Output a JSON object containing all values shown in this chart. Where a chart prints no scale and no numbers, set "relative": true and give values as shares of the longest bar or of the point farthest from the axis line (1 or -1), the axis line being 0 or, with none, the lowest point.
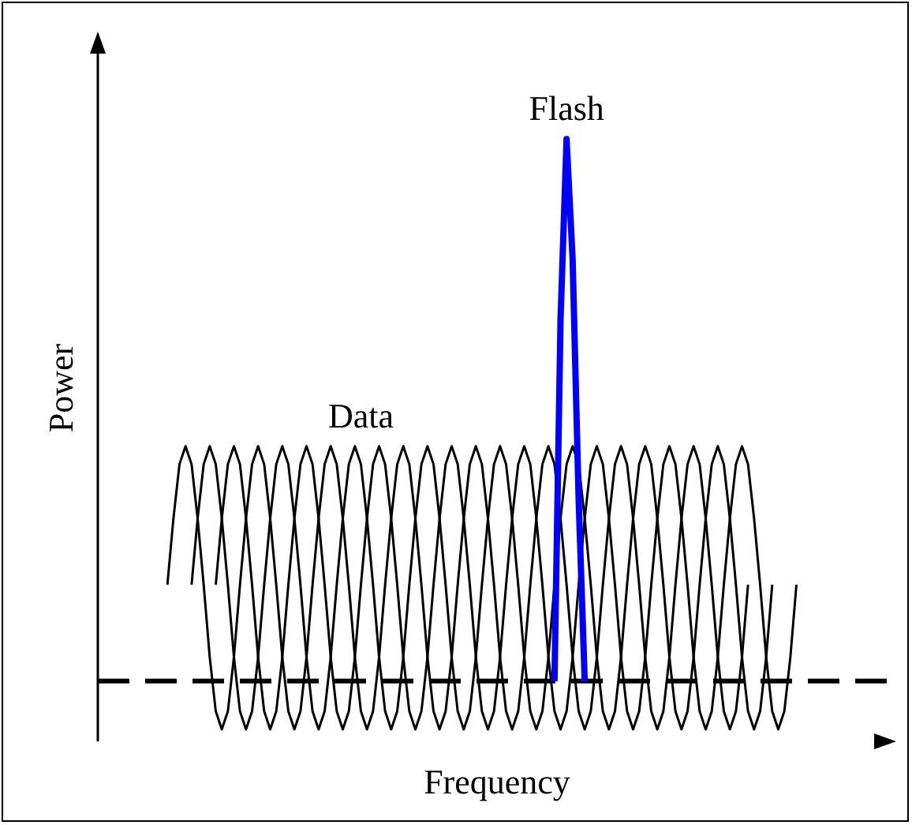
{
  "chart_data": {
    "type": "line",
    "relative": true,
    "xlabel": "Frequency",
    "ylabel": "Power",
    "grid": false,
    "legend": false,
    "marker": "none",
    "line_style": "solid",
    "categories": [
      null,
      null,
      null,
      null,
      null,
      null,
      null,
      null,
      null,
      null,
      null,
      null,
      null,
      null,
      null,
      null,
      null,
      null,
      null,
      null,
      null,
      null,
      null,
      null,
      null,
      null,
      null,
      null,
      null,
      null,
      null,
      null,
      null,
      null,
      null,
      null,
      null,
      null,
      null,
      null,
      null,
      null,
      null,
      null,
      null,
      null,
      null,
      null,
      null,
      null,
      null,
      null,
      null,
      null,
      null,
      null,
      null,
      null,
      null,
      null,
      null,
      null,
      null,
      null,
      null,
      null,
      null,
      null,
      null,
      null,
      null,
      null,
      null,
      null,
      null,
      null,
      null,
      null,
      null,
      null,
      null,
      null,
      null,
      null,
      null,
      null,
      null,
      null,
      null,
      null,
      null,
      null,
      null,
      null,
      null,
      null,
      null,
      null,
      null,
      null,
      null,
      null,
      null,
      null,
      null,
      null,
      null,
      null,
      null,
      null,
      null,
      null,
      null,
      null,
      null,
      null,
      null,
      null,
      null,
      null,
      null,
      null,
      null,
      null,
      null,
      null,
      null,
      null,
      null,
      null,
      null,
      null
    ],
    "ref_lines": [
      {
        "axis": "y",
        "value": 0.1,
        "line_style": "dashed",
        "color": "#000000"
      }
    ],
    "series": [
      {
        "name": "Data",
        "color": "#000000",
        "values": [
          null,
          null,
          null,
          null,
          null,
          null,
          null,
          null,
          null,
          null,
          null,
          0.26,
          0.37,
          0.46,
          0.49,
          0.46,
          0.37,
          0.26,
          0.14,
          0.05,
          0.02,
          0.05,
          0.14,
          0.26,
          0.37,
          0.46,
          0.49,
          0.46,
          0.37,
          0.26,
          0.14,
          0.05,
          0.02,
          0.05,
          0.14,
          0.26,
          0.37,
          0.46,
          0.49,
          0.46,
          0.37,
          0.26,
          0.14,
          0.05,
          0.02,
          0.05,
          0.14,
          0.26,
          0.37,
          0.46,
          0.49,
          0.46,
          0.37,
          0.26,
          0.14,
          0.05,
          0.02,
          0.05,
          0.14,
          0.26,
          0.37,
          0.46,
          0.49,
          0.46,
          0.37,
          0.26,
          0.14,
          0.05,
          0.02,
          0.05,
          0.14,
          0.26,
          0.37,
          0.46,
          0.49,
          0.46,
          0.37,
          0.26,
          0.14,
          0.05,
          0.02,
          0.05,
          0.14,
          0.26,
          0.37,
          0.46,
          0.49,
          0.46,
          0.37,
          0.26,
          0.14,
          0.05,
          0.02,
          0.05,
          0.14,
          0.26,
          0.37,
          0.46,
          0.49,
          0.46,
          0.37,
          0.26,
          0.14,
          0.05,
          0.02,
          0.05,
          0.14,
          0.26,
          null,
          null,
          null,
          null,
          null,
          null,
          null,
          null,
          null,
          null,
          null,
          null,
          null,
          null,
          null,
          null,
          null,
          null,
          null,
          null,
          null,
          null,
          null,
          null
        ]
      },
      {
        "color": "#000000",
        "values": [
          null,
          null,
          null,
          null,
          null,
          null,
          null,
          null,
          null,
          null,
          null,
          null,
          null,
          null,
          null,
          0.26,
          0.37,
          0.46,
          0.49,
          0.46,
          0.37,
          0.26,
          0.14,
          0.05,
          0.02,
          0.05,
          0.14,
          0.26,
          0.37,
          0.46,
          0.49,
          0.46,
          0.37,
          0.26,
          0.14,
          0.05,
          0.02,
          0.05,
          0.14,
          0.26,
          0.37,
          0.46,
          0.49,
          0.46,
          0.37,
          0.26,
          0.14,
          0.05,
          0.02,
          0.05,
          0.14,
          0.26,
          0.37,
          0.46,
          0.49,
          0.46,
          0.37,
          0.26,
          0.14,
          0.05,
          0.02,
          0.05,
          0.14,
          0.26,
          0.37,
          0.46,
          0.49,
          0.46,
          0.37,
          0.26,
          0.14,
          0.05,
          0.02,
          0.05,
          0.14,
          0.26,
          0.37,
          0.46,
          0.49,
          0.46,
          0.37,
          0.26,
          0.14,
          0.05,
          0.02,
          0.05,
          0.14,
          0.26,
          0.37,
          0.46,
          0.49,
          0.46,
          0.37,
          0.26,
          0.14,
          0.05,
          0.02,
          0.05,
          0.14,
          0.26,
          0.37,
          0.46,
          0.49,
          0.46,
          0.37,
          0.26,
          0.14,
          0.05,
          0.02,
          0.05,
          0.14,
          0.26,
          null,
          null,
          null,
          null,
          null,
          null,
          null,
          null,
          null,
          null,
          null,
          null,
          null,
          null,
          null,
          null,
          null,
          null,
          null,
          null
        ]
      },
      {
        "color": "#000000",
        "values": [
          null,
          null,
          null,
          null,
          null,
          null,
          null,
          null,
          null,
          null,
          null,
          null,
          null,
          null,
          null,
          null,
          null,
          null,
          null,
          0.26,
          0.37,
          0.46,
          0.49,
          0.46,
          0.37,
          0.26,
          0.14,
          0.05,
          0.02,
          0.05,
          0.14,
          0.26,
          0.37,
          0.46,
          0.49,
          0.46,
          0.37,
          0.26,
          0.14,
          0.05,
          0.02,
          0.05,
          0.14,
          0.26,
          0.37,
          0.46,
          0.49,
          0.46,
          0.37,
          0.26,
          0.14,
          0.05,
          0.02,
          0.05,
          0.14,
          0.26,
          0.37,
          0.46,
          0.49,
          0.46,
          0.37,
          0.26,
          0.14,
          0.05,
          0.02,
          0.05,
          0.14,
          0.26,
          0.37,
          0.46,
          0.49,
          0.46,
          0.37,
          0.26,
          0.14,
          0.05,
          0.02,
          0.05,
          0.14,
          0.26,
          0.37,
          0.46,
          0.49,
          0.46,
          0.37,
          0.26,
          0.14,
          0.05,
          0.02,
          0.05,
          0.14,
          0.26,
          0.37,
          0.46,
          0.49,
          0.46,
          0.37,
          0.26,
          0.14,
          0.05,
          0.02,
          0.05,
          0.14,
          0.26,
          0.37,
          0.46,
          0.49,
          0.46,
          0.37,
          0.26,
          0.14,
          0.05,
          0.02,
          0.05,
          0.14,
          0.26,
          null,
          null,
          null,
          null,
          null,
          null,
          null,
          null,
          null,
          null,
          null,
          null,
          null,
          null,
          null,
          null
        ]
      },
      {
        "name": "Flash",
        "color": "#0000ff",
        "values": [
          null,
          null,
          null,
          null,
          null,
          null,
          null,
          null,
          null,
          null,
          null,
          null,
          null,
          null,
          null,
          null,
          null,
          null,
          null,
          null,
          null,
          null,
          null,
          null,
          null,
          null,
          null,
          null,
          null,
          null,
          null,
          null,
          null,
          null,
          null,
          null,
          null,
          null,
          null,
          null,
          null,
          null,
          null,
          null,
          null,
          null,
          null,
          null,
          null,
          null,
          null,
          null,
          null,
          null,
          null,
          null,
          null,
          null,
          null,
          null,
          null,
          null,
          null,
          null,
          null,
          null,
          null,
          null,
          null,
          null,
          null,
          null,
          null,
          null,
          null,
          0.1,
          0.7,
          1,
          0.8,
          0.4,
          0.1,
          null,
          null,
          null,
          null,
          null,
          null,
          null,
          null,
          null,
          null,
          null,
          null,
          null,
          null,
          null,
          null,
          null,
          null,
          null,
          null,
          null,
          null,
          null,
          null,
          null,
          null,
          null,
          null,
          null,
          null,
          null,
          null,
          null,
          null,
          null,
          null,
          null,
          null,
          null,
          null,
          null,
          null,
          null,
          null,
          null,
          null,
          null,
          null,
          null,
          null,
          null
        ]
      }
    ]
  }
}
